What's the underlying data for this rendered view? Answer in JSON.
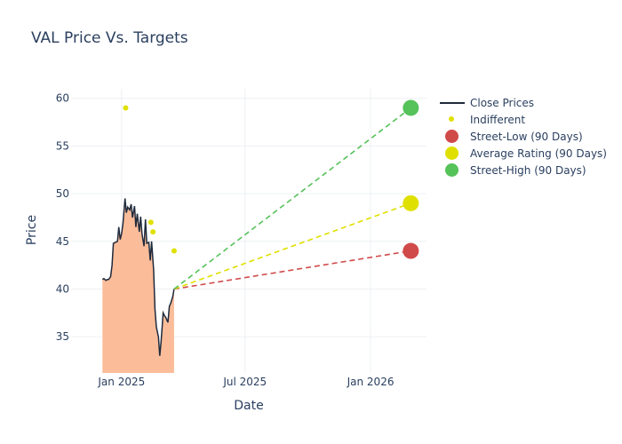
{
  "chart_data": {
    "type": "line",
    "title": "VAL Price Vs. Targets",
    "xlabel": "Date",
    "ylabel": "Price",
    "x_ticks": [
      "Jan 2025",
      "Jul 2025",
      "Jan 2026"
    ],
    "y_ticks": [
      35,
      40,
      45,
      50,
      55,
      60
    ],
    "ylim": [
      31.2,
      61.0
    ],
    "xlim": [
      "2024-10-19",
      "2026-03-24"
    ],
    "grid": true,
    "legend_position": "top-right",
    "series": [
      {
        "name": "Close Prices",
        "kind": "line-area",
        "line_color": "#1f2a3c",
        "fill_color": "#fbbc99",
        "x": [
          "2024-12-04",
          "2024-12-06",
          "2024-12-09",
          "2024-12-11",
          "2024-12-13",
          "2024-12-16",
          "2024-12-18",
          "2024-12-20",
          "2024-12-23",
          "2024-12-26",
          "2024-12-28",
          "2024-12-30",
          "2025-01-01",
          "2025-01-03",
          "2025-01-06",
          "2025-01-08",
          "2025-01-10",
          "2025-01-13",
          "2025-01-15",
          "2025-01-17",
          "2025-01-20",
          "2025-01-22",
          "2025-01-24",
          "2025-01-27",
          "2025-01-29",
          "2025-01-31",
          "2025-02-03",
          "2025-02-05",
          "2025-02-07",
          "2025-02-10",
          "2025-02-12",
          "2025-02-14",
          "2025-02-17",
          "2025-02-19",
          "2025-02-21",
          "2025-02-24",
          "2025-02-26",
          "2025-02-28",
          "2025-03-03",
          "2025-03-05",
          "2025-03-07",
          "2025-03-10",
          "2025-03-12",
          "2025-03-14",
          "2025-03-17",
          "2025-03-19",
          "2025-03-21",
          "2025-03-24",
          "2025-03-26",
          "2025-03-28",
          "2025-03-31",
          "2025-04-02",
          "2025-04-04",
          "2025-04-07",
          "2025-04-09",
          "2025-04-11",
          "2025-04-14",
          "2025-04-16",
          "2025-04-18",
          "2025-04-21"
        ],
        "values": [
          41.0,
          41.1,
          40.9,
          41.0,
          41.0,
          41.3,
          42.5,
          44.8,
          44.9,
          45.0,
          46.5,
          45.2,
          45.8,
          46.8,
          49.5,
          48.0,
          48.6,
          48.3,
          48.9,
          47.5,
          48.7,
          46.5,
          47.9,
          46.0,
          47.6,
          45.8,
          44.5,
          47.3,
          44.8,
          44.9,
          43.0,
          45.0,
          42.0,
          37.9,
          36.0,
          35.0,
          33.0,
          34.5,
          37.5,
          37.2,
          37.0,
          36.5,
          38.2,
          38.5,
          39.2,
          40.0,
          null,
          null,
          null,
          null,
          null,
          null,
          null,
          null,
          null,
          null,
          null,
          null,
          null,
          null
        ]
      },
      {
        "name": "Indifferent",
        "kind": "markers",
        "color": "#e0e000",
        "x": [
          "2025-01-07",
          "2025-02-13",
          "2025-02-16",
          "2025-03-19"
        ],
        "values": [
          59.0,
          47.0,
          46.0,
          44.0
        ]
      },
      {
        "name": "Street-Low (90 Days)",
        "kind": "target",
        "color": "#d04a4a",
        "from": {
          "x": "2025-03-19",
          "value": 40.0
        },
        "to": {
          "x": "2026-03-01",
          "value": 44.0
        }
      },
      {
        "name": "Average Rating (90 Days)",
        "kind": "target",
        "color": "#e0e000",
        "from": {
          "x": "2025-03-19",
          "value": 40.0
        },
        "to": {
          "x": "2026-03-01",
          "value": 49.0
        }
      },
      {
        "name": "Street-High (90 Days)",
        "kind": "target",
        "color": "#55c25a",
        "from": {
          "x": "2025-03-19",
          "value": 40.0
        },
        "to": {
          "x": "2026-03-01",
          "value": 59.0
        }
      }
    ]
  }
}
